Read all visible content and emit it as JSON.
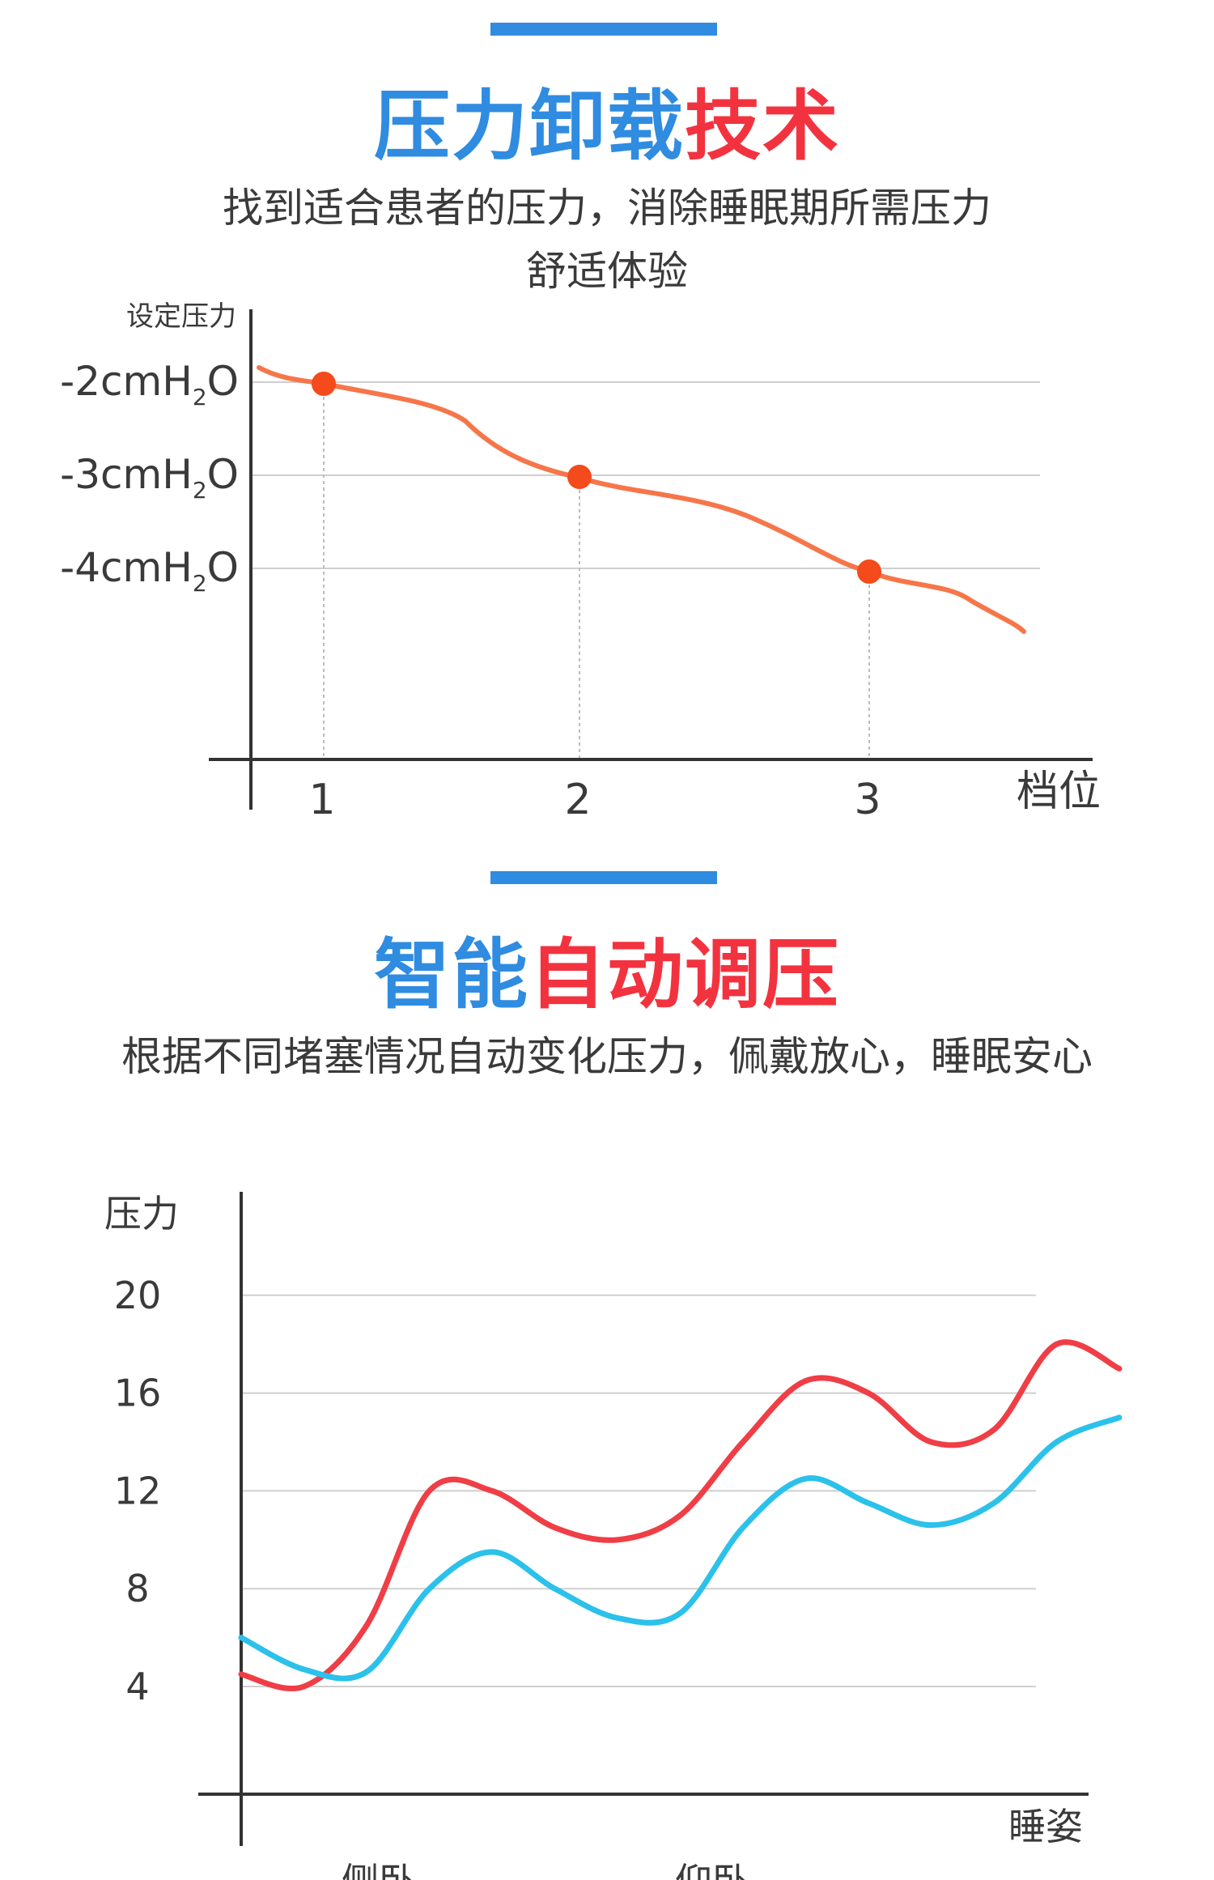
{
  "section1": {
    "title_part1": "压力卸载",
    "title_part2": "技术",
    "subtitle_line1": "找到适合患者的压力，消除睡眠期所需压力",
    "subtitle_line2": "舒适体验"
  },
  "section2": {
    "title_part1": "智能",
    "title_part2": "自动调压",
    "subtitle": "根据不同堵塞情况自动变化压力，佩戴放心，睡眠安心"
  },
  "colors": {
    "blue": "#2f8ce0",
    "red": "#f2333f",
    "orange_line": "#f6764a",
    "orange_dot": "#f44a1c",
    "red_line": "#ef3e46",
    "cyan_line": "#2bc1ea"
  },
  "chart_data": [
    {
      "type": "line",
      "ylabel": "设定压力",
      "xlabel": "档位",
      "y_tick_labels": [
        "-2cmH2O",
        "-3cmH2O",
        "-4cmH2O"
      ],
      "x_tick_labels": [
        "1",
        "2",
        "3"
      ],
      "marked_points": [
        {
          "x": 1,
          "y": -2
        },
        {
          "x": 2,
          "y": -3
        },
        {
          "x": 3,
          "y": -4
        }
      ],
      "grid": true,
      "legend": "none"
    },
    {
      "type": "line",
      "ylabel": "压力",
      "xlabel": "睡姿",
      "y_ticks": [
        4,
        8,
        12,
        16,
        20
      ],
      "x_tick_labels": [
        "侧卧",
        "仰卧"
      ],
      "grid": true,
      "legend": "none",
      "series": [
        {
          "color": "#ef3e46",
          "x": [
            0,
            0.5,
            1,
            1.5,
            2,
            2.5,
            3,
            3.5,
            4,
            4.5,
            5,
            5.5,
            6,
            6.5,
            7
          ],
          "values": [
            4.5,
            4,
            6.5,
            12,
            12,
            10.5,
            10,
            11,
            14,
            16.5,
            16,
            14,
            14.5,
            18,
            17
          ]
        },
        {
          "color": "#2bc1ea",
          "x": [
            0,
            0.5,
            1,
            1.5,
            2,
            2.5,
            3,
            3.5,
            4,
            4.5,
            5,
            5.5,
            6,
            6.5,
            7
          ],
          "values": [
            6,
            4.7,
            4.6,
            8,
            9.5,
            8,
            6.8,
            7,
            10.5,
            12.5,
            11.5,
            10.6,
            11.5,
            14,
            15
          ]
        }
      ]
    }
  ]
}
